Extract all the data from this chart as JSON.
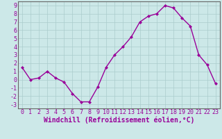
{
  "x": [
    0,
    1,
    2,
    3,
    4,
    5,
    6,
    7,
    8,
    9,
    10,
    11,
    12,
    13,
    14,
    15,
    16,
    17,
    18,
    19,
    20,
    21,
    22,
    23
  ],
  "y": [
    1.5,
    0.0,
    0.2,
    1.0,
    0.2,
    -0.3,
    -1.7,
    -2.7,
    -2.7,
    -0.9,
    1.5,
    3.0,
    4.0,
    5.2,
    7.0,
    7.7,
    8.0,
    9.0,
    8.7,
    7.5,
    6.5,
    3.0,
    1.8,
    -0.5
  ],
  "line_color": "#990099",
  "marker": "D",
  "marker_size": 2,
  "bg_color": "#cce8e8",
  "grid_color": "#aacccc",
  "xlabel": "Windchill (Refroidissement éolien,°C)",
  "xlabel_color": "#990099",
  "tick_color": "#990099",
  "xlim": [
    -0.5,
    23.5
  ],
  "ylim": [
    -3.5,
    9.5
  ],
  "yticks": [
    -3,
    -2,
    -1,
    0,
    1,
    2,
    3,
    4,
    5,
    6,
    7,
    8,
    9
  ],
  "xticks": [
    0,
    1,
    2,
    3,
    4,
    5,
    6,
    7,
    8,
    9,
    10,
    11,
    12,
    13,
    14,
    15,
    16,
    17,
    18,
    19,
    20,
    21,
    22,
    23
  ],
  "spine_color": "#666666",
  "label_fontsize": 6,
  "tick_fontsize": 6,
  "xlabel_fontsize": 7
}
